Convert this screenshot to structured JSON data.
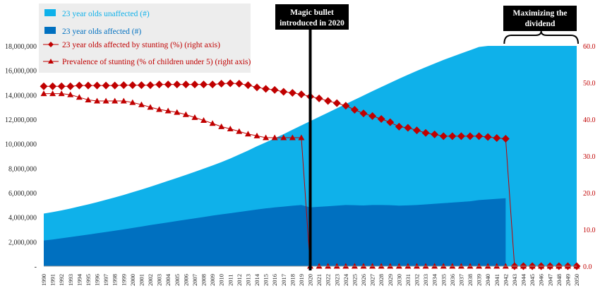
{
  "chart_data": {
    "type": "area",
    "categories": [
      "1990",
      "1991",
      "1992",
      "1993",
      "1994",
      "1995",
      "1996",
      "1997",
      "1998",
      "1999",
      "2000",
      "2001",
      "2002",
      "2003",
      "2004",
      "2005",
      "2006",
      "2007",
      "2008",
      "2009",
      "2010",
      "2011",
      "2012",
      "2013",
      "2014",
      "2015",
      "2016",
      "2017",
      "2018",
      "2019",
      "2020",
      "2021",
      "2022",
      "2023",
      "2024",
      "2025",
      "2026",
      "2027",
      "2028",
      "2029",
      "2030",
      "2031",
      "2032",
      "2033",
      "2034",
      "2035",
      "2036",
      "2037",
      "2038",
      "2039",
      "2040",
      "2041",
      "2042",
      "2043",
      "2044",
      "2045",
      "2046",
      "2047",
      "2048",
      "2049",
      "2050"
    ],
    "left_axis": {
      "ylim": [
        0,
        18000000
      ],
      "tick_labels": [
        "-",
        "2,000,000",
        "4,000,000",
        "6,000,000",
        "8,000,000",
        "10,000,000",
        "12,000,000",
        "14,000,000",
        "16,000,000",
        "18,000,000"
      ]
    },
    "right_axis": {
      "ylim": [
        0,
        60
      ],
      "tick_labels": [
        "0.0",
        "10.0",
        "20.0",
        "30.0",
        "40.0",
        "50.0",
        "60.0"
      ]
    },
    "series": [
      {
        "name": "23 year olds unaffected (#)",
        "kind": "area",
        "axis": "left",
        "color": "#0fb1ea",
        "values": [
          4300000,
          4420000,
          4560000,
          4710000,
          4880000,
          5050000,
          5230000,
          5420000,
          5620000,
          5820000,
          6040000,
          6260000,
          6490000,
          6730000,
          6970000,
          7210000,
          7460000,
          7710000,
          7970000,
          8230000,
          8500000,
          8800000,
          9120000,
          9450000,
          9800000,
          10120000,
          10450000,
          10790000,
          11150000,
          11500000,
          11850000,
          12200000,
          12550000,
          12900000,
          13250000,
          13600000,
          13950000,
          14300000,
          14640000,
          14980000,
          15320000,
          15640000,
          15960000,
          16260000,
          16560000,
          16850000,
          17120000,
          17390000,
          17650000,
          17910000,
          18000000,
          18000000,
          18000000,
          18000000,
          18000000,
          18000000,
          18000000,
          18000000,
          18000000,
          18000000,
          18000000
        ]
      },
      {
        "name": "23 year olds affected (#)",
        "kind": "area",
        "axis": "left",
        "color": "#0070c0",
        "values": [
          2100000,
          2180000,
          2280000,
          2380000,
          2480000,
          2580000,
          2690000,
          2790000,
          2900000,
          3010000,
          3120000,
          3240000,
          3360000,
          3470000,
          3580000,
          3690000,
          3800000,
          3910000,
          4020000,
          4130000,
          4230000,
          4330000,
          4430000,
          4530000,
          4630000,
          4720000,
          4800000,
          4870000,
          4940000,
          5000000,
          4800000,
          4850000,
          4900000,
          4950000,
          5000000,
          4980000,
          4960000,
          5000000,
          5000000,
          4980000,
          4950000,
          4970000,
          5000000,
          5050000,
          5100000,
          5150000,
          5200000,
          5250000,
          5300000,
          5400000,
          5450000,
          5500000,
          5550000,
          0,
          0,
          0,
          0,
          0,
          0,
          0,
          0
        ]
      },
      {
        "name": "23 year olds affected by stunting (%) (right axis)",
        "kind": "line",
        "marker": "diamond",
        "axis": "right",
        "color": "#c00000",
        "values": [
          49.0,
          49.0,
          49.0,
          49.0,
          49.2,
          49.2,
          49.2,
          49.2,
          49.2,
          49.3,
          49.3,
          49.3,
          49.3,
          49.5,
          49.5,
          49.5,
          49.5,
          49.5,
          49.5,
          49.5,
          49.7,
          49.8,
          49.7,
          49.3,
          48.7,
          48.3,
          48.0,
          47.5,
          47.2,
          46.8,
          46.2,
          45.7,
          45.0,
          44.4,
          43.7,
          42.6,
          41.6,
          40.9,
          40.1,
          39.2,
          38.0,
          37.7,
          37.0,
          36.3,
          35.9,
          35.4,
          35.4,
          35.4,
          35.4,
          35.4,
          35.2,
          34.9,
          34.7,
          0,
          0,
          0,
          0,
          0,
          0,
          0,
          0
        ]
      },
      {
        "name": "Prevalence of stunting (% of children under 5) (right axis)",
        "kind": "line",
        "marker": "triangle",
        "axis": "right",
        "color": "#c00000",
        "values": [
          47.0,
          47.0,
          47.0,
          46.7,
          46.0,
          45.3,
          45.0,
          45.0,
          45.0,
          45.0,
          44.6,
          44.0,
          43.3,
          42.7,
          42.3,
          41.9,
          41.3,
          40.5,
          39.7,
          38.9,
          38.0,
          37.4,
          36.7,
          36.0,
          35.5,
          35.0,
          35.0,
          35.0,
          35.0,
          35.0,
          0,
          0,
          0,
          0,
          0,
          0,
          0,
          0,
          0,
          0,
          0,
          0,
          0,
          0,
          0,
          0,
          0,
          0,
          0,
          0,
          0,
          0,
          0,
          0,
          0,
          0,
          0,
          0,
          0,
          0,
          0
        ]
      }
    ],
    "annotations": {
      "vertical_line": {
        "at": "2020",
        "label": "Magic bullet introduced in 2020"
      },
      "bracket": {
        "from": "2042",
        "to": "2050",
        "label": "Maximizing the dividend"
      }
    },
    "legend_position": "top-left",
    "grid": false
  }
}
